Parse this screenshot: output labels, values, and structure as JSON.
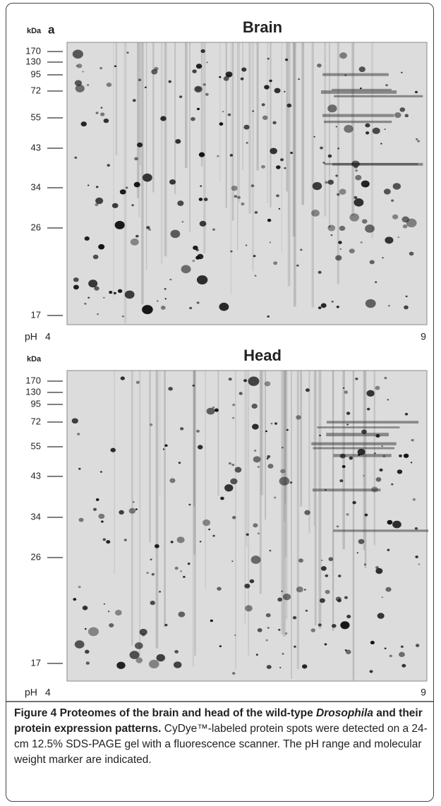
{
  "panels": [
    {
      "label": "a",
      "kda_label": "kDa",
      "title": "Brain",
      "markers": [
        "170",
        "130",
        "95",
        "72",
        "55",
        "43",
        "34",
        "26",
        "17"
      ],
      "ph_label": "pH",
      "ph_start": "4",
      "ph_end": "9"
    },
    {
      "kda_label": "kDa",
      "title": "Head",
      "markers": [
        "170",
        "130",
        "95",
        "72",
        "55",
        "43",
        "34",
        "26",
        "17"
      ],
      "ph_label": "pH",
      "ph_start": "4",
      "ph_end": "9"
    }
  ],
  "caption": {
    "bold_1": "Figure 4 Proteomes of the brain and head of the wild-type",
    "italic": "Drosophila",
    "bold_2": "and their protein expression patterns.",
    "text": "CyDye™-labeled protein spots were detected on a 24-cm 12.5% SDS-PAGE gel with a fluorescence scanner. The pH range and molecular weight marker are indicated."
  }
}
